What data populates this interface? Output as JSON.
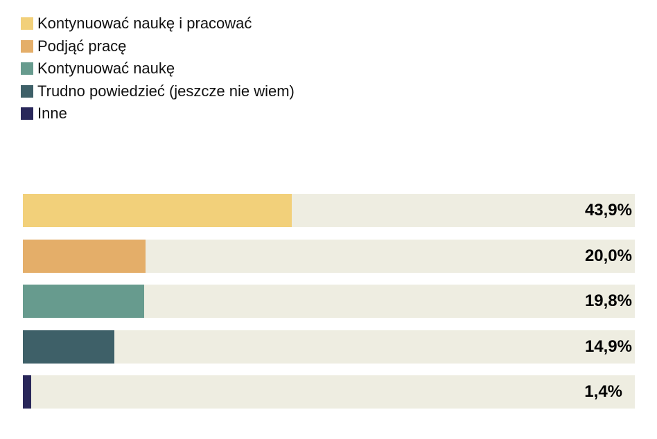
{
  "chart_data": {
    "type": "bar",
    "orientation": "horizontal",
    "categories": [
      "Kontynuować naukę i pracować",
      "Podjąć pracę",
      "Kontynuować naukę",
      "Trudno powiedzieć (jeszcze nie wiem)",
      "Inne"
    ],
    "values": [
      43.9,
      20.0,
      19.8,
      14.9,
      1.4
    ],
    "value_labels": [
      "43,9%",
      "20,0%",
      "19,8%",
      "14,9%",
      "1,4%"
    ],
    "colors": [
      "#F2D07A",
      "#E4AE69",
      "#679B8E",
      "#3E6068",
      "#29275A"
    ],
    "track_color": "#EEEDE1",
    "xlim": [
      0,
      100
    ],
    "legend_position": "top-left",
    "grid": false
  }
}
